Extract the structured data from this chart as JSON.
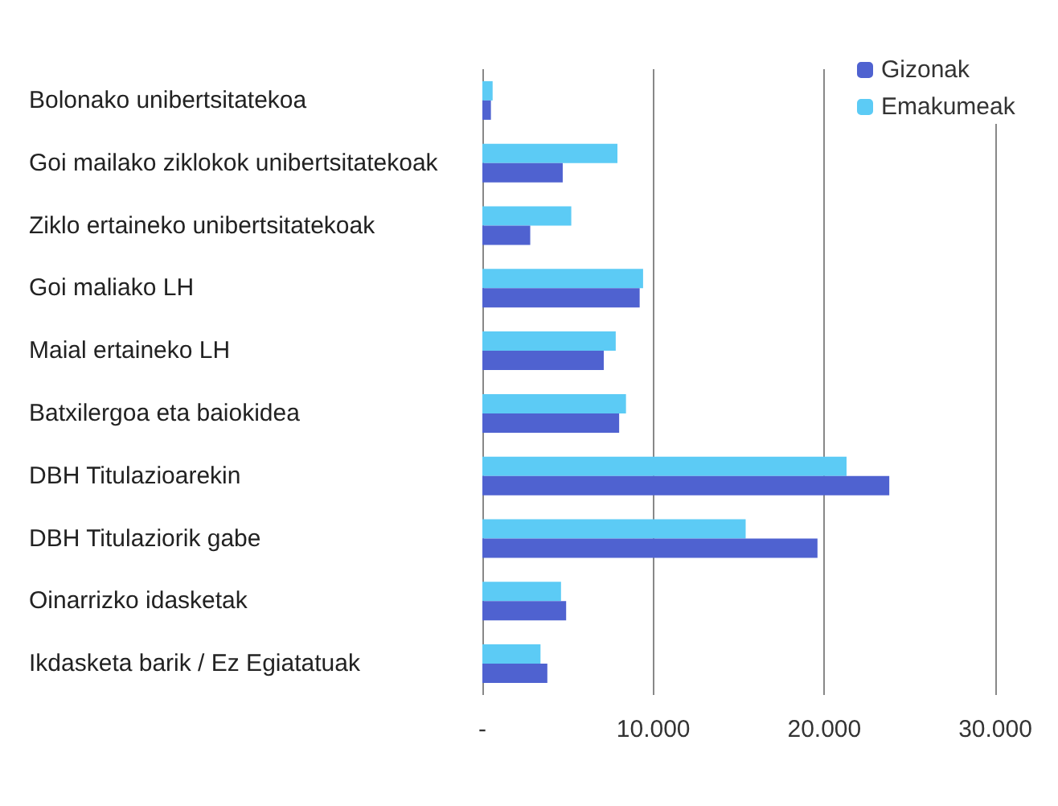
{
  "chart_data": {
    "type": "bar",
    "orientation": "horizontal",
    "categories": [
      "Bolonako unibertsitatekoa",
      "Goi mailako ziklokok unibertsitatekoak",
      "Ziklo ertaineko unibertsitatekoak",
      "Goi maliako LH",
      "Maial ertaineko LH",
      "Batxilergoa eta baiokidea",
      "DBH Titulazioarekin",
      "DBH Titulaziorik gabe",
      "Oinarrizko idasketak",
      "Ikdasketa barik / Ez Egiatatuak"
    ],
    "series": [
      {
        "name": "Gizonak",
        "color": "#4f62d0",
        "values": [
          500,
          4700,
          2800,
          9200,
          7100,
          8000,
          23800,
          19600,
          4900,
          3800
        ]
      },
      {
        "name": "Emakumeak",
        "color": "#5ccbf5",
        "values": [
          600,
          7900,
          5200,
          9400,
          7800,
          8400,
          21300,
          15400,
          4600,
          3400
        ]
      }
    ],
    "xlim": [
      0,
      30000
    ],
    "xticks": [
      {
        "value": 0,
        "label": "-"
      },
      {
        "value": 10000,
        "label": "10.000"
      },
      {
        "value": 20000,
        "label": "20.000"
      },
      {
        "value": 30000,
        "label": "30.000"
      }
    ],
    "grid": "x",
    "legend": "top right"
  }
}
